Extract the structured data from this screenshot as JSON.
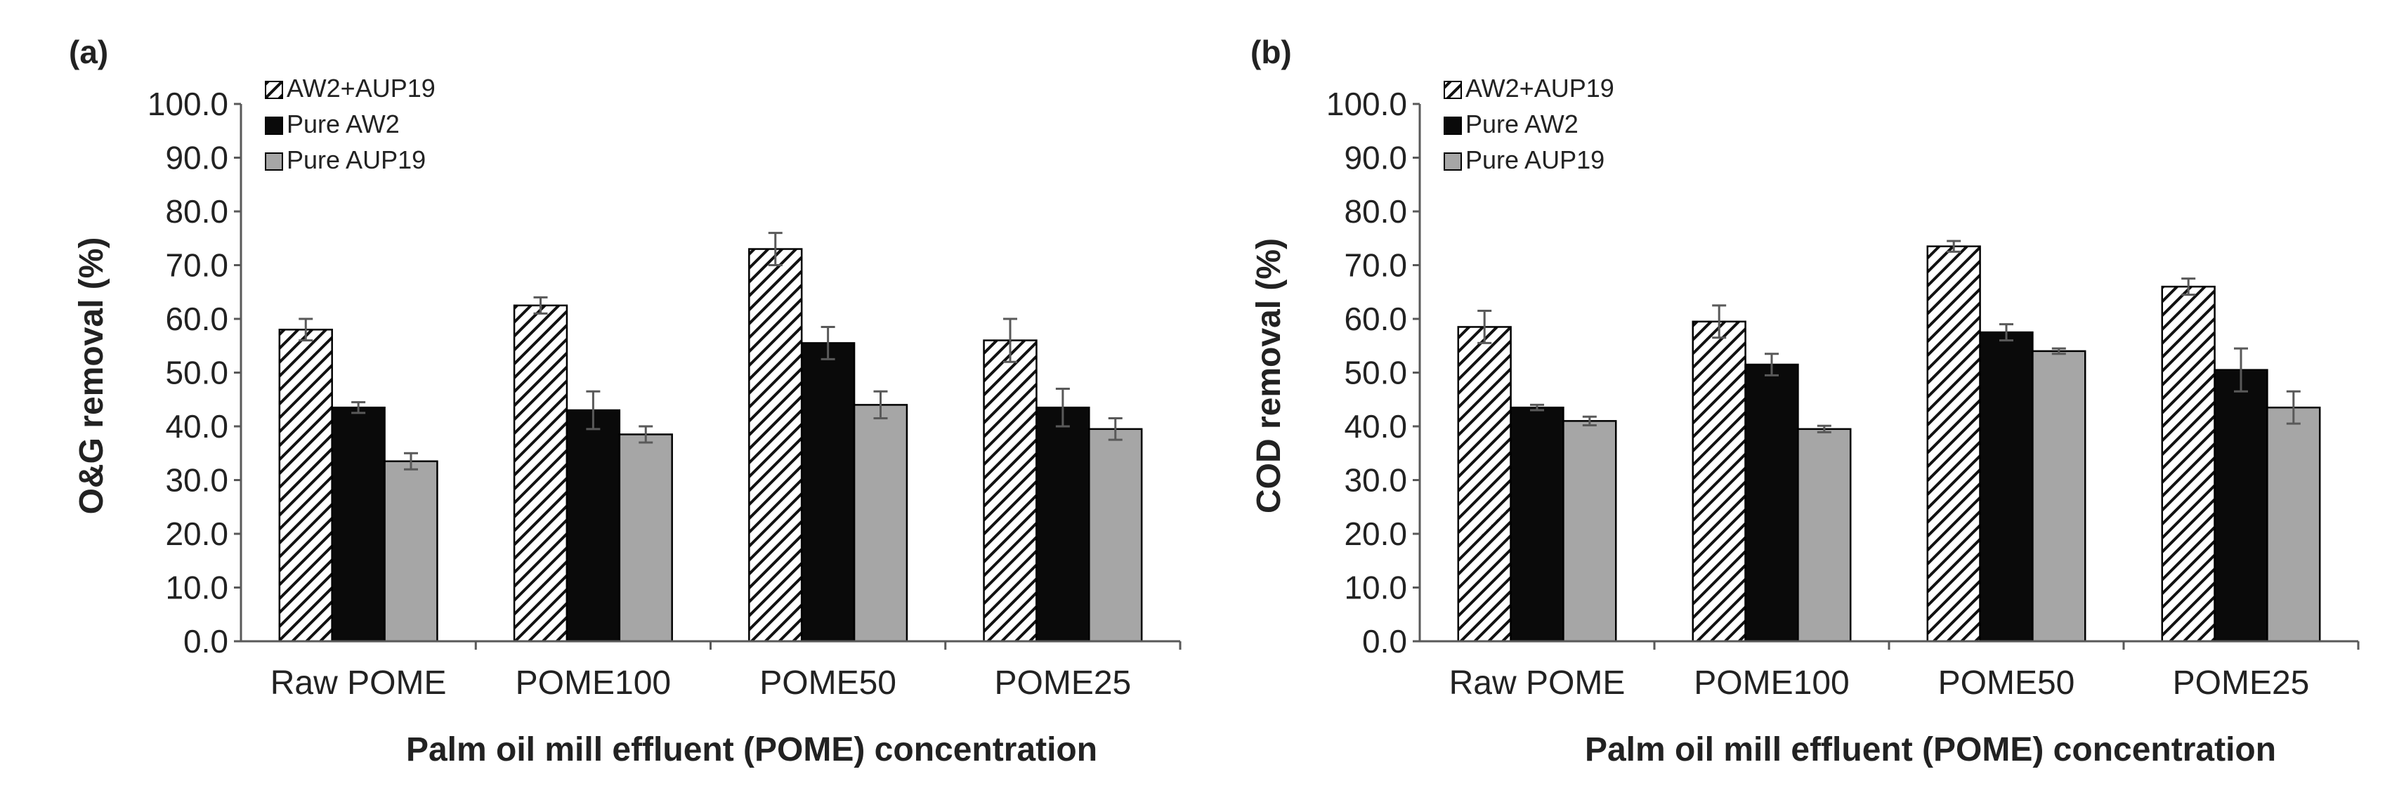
{
  "chart_data": [
    {
      "type": "bar",
      "panel_label": "(a)",
      "title": "",
      "xlabel": "Palm oil mill effluent (POME) concentration",
      "ylabel": "O&G removal (%)",
      "ylim": [
        0,
        100
      ],
      "ytick_values": [
        0,
        10,
        20,
        30,
        40,
        50,
        60,
        70,
        80,
        90,
        100
      ],
      "ytick_labels": [
        "0.0",
        "10.0",
        "20.0",
        "30.0",
        "40.0",
        "50.0",
        "60.0",
        "70.0",
        "80.0",
        "90.0",
        "100.0"
      ],
      "categories": [
        "Raw POME",
        "POME100",
        "POME50",
        "POME25"
      ],
      "legend_position": "top-left",
      "grid": false,
      "series": [
        {
          "name": "AW2+AUP19",
          "pattern": "hatched",
          "values": [
            58.0,
            62.5,
            73.0,
            56.0
          ],
          "errors": [
            2.0,
            1.5,
            3.0,
            4.0
          ]
        },
        {
          "name": "Pure AW2",
          "pattern": "solid-black",
          "values": [
            43.5,
            43.0,
            55.5,
            43.5
          ],
          "errors": [
            1.0,
            3.5,
            3.0,
            3.5
          ]
        },
        {
          "name": "Pure AUP19",
          "pattern": "solid-gray",
          "values": [
            33.5,
            38.5,
            44.0,
            39.5
          ],
          "errors": [
            1.5,
            1.5,
            2.5,
            2.0
          ]
        }
      ]
    },
    {
      "type": "bar",
      "panel_label": "(b)",
      "title": "",
      "xlabel": "Palm oil mill effluent (POME) concentration",
      "ylabel": "COD removal (%)",
      "ylim": [
        0,
        100
      ],
      "ytick_values": [
        0,
        10,
        20,
        30,
        40,
        50,
        60,
        70,
        80,
        90,
        100
      ],
      "ytick_labels": [
        "0.0",
        "10.0",
        "20.0",
        "30.0",
        "40.0",
        "50.0",
        "60.0",
        "70.0",
        "80.0",
        "90.0",
        "100.0"
      ],
      "categories": [
        "Raw POME",
        "POME100",
        "POME50",
        "POME25"
      ],
      "legend_position": "top-left",
      "grid": false,
      "series": [
        {
          "name": "AW2+AUP19",
          "pattern": "hatched",
          "values": [
            58.5,
            59.5,
            73.5,
            66.0
          ],
          "errors": [
            3.0,
            3.0,
            1.0,
            1.5
          ]
        },
        {
          "name": "Pure AW2",
          "pattern": "solid-black",
          "values": [
            43.5,
            51.5,
            57.5,
            50.5
          ],
          "errors": [
            0.5,
            2.0,
            1.5,
            4.0
          ]
        },
        {
          "name": "Pure AUP19",
          "pattern": "solid-gray",
          "values": [
            41.0,
            39.5,
            54.0,
            43.5
          ],
          "errors": [
            0.8,
            0.6,
            0.5,
            3.0
          ]
        }
      ]
    }
  ],
  "colors": {
    "hatch_stroke": "#111111",
    "hatch_background": "#ffffff",
    "solid_black": "#0a0a0a",
    "solid_gray": "#a6a6a6",
    "axis": "#595959",
    "error_bar": "#595959",
    "text": "#222222"
  }
}
